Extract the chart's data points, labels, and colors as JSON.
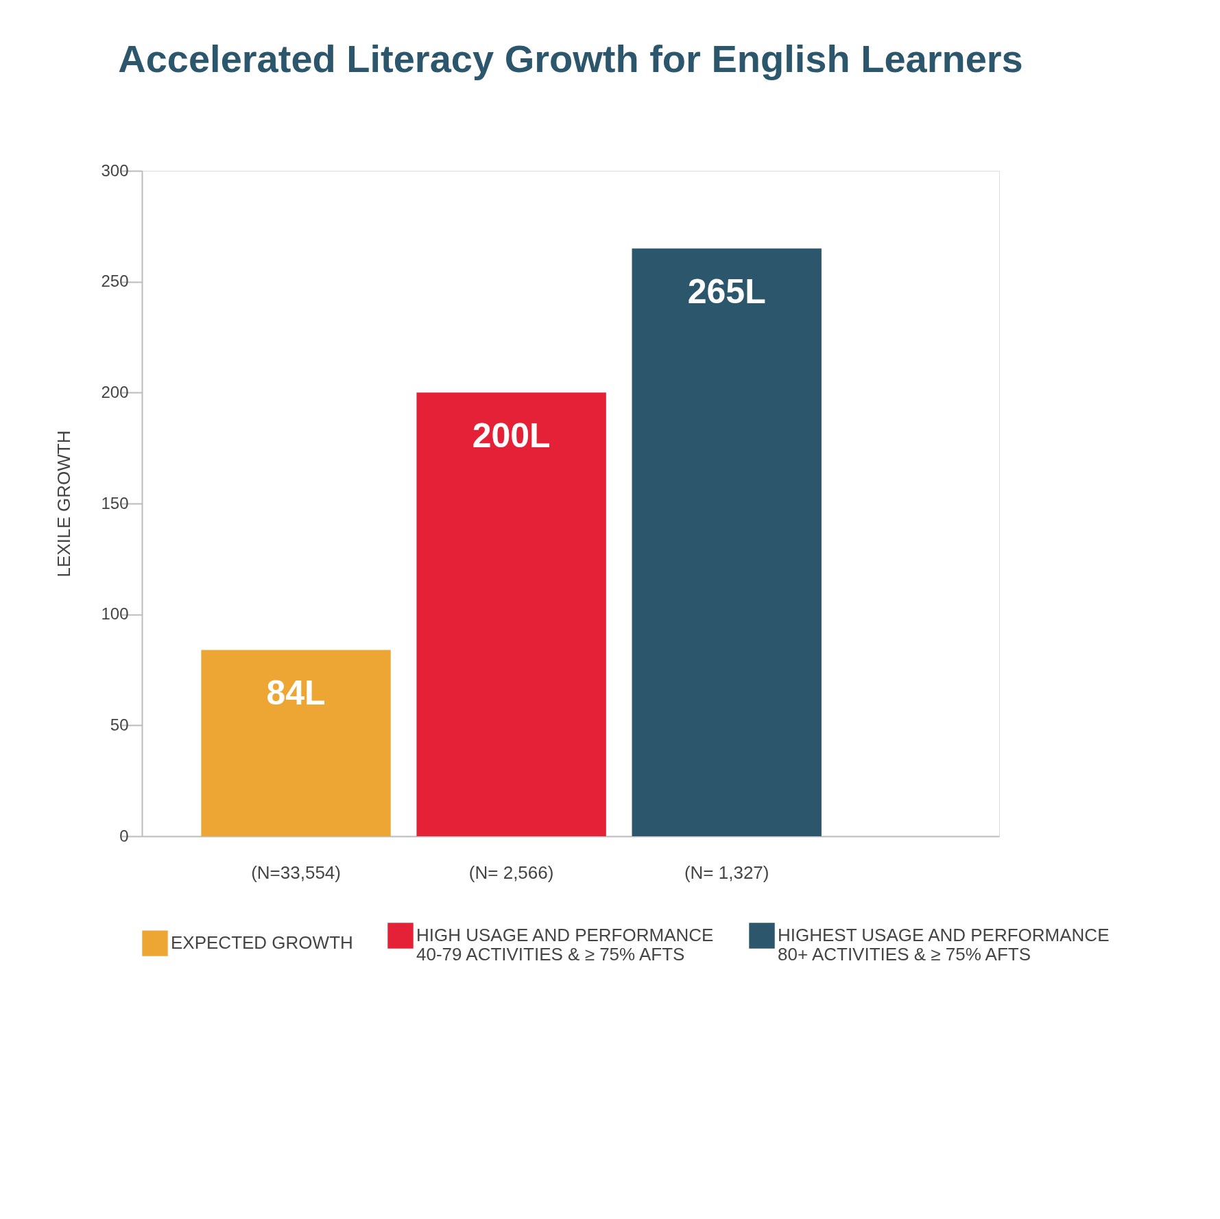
{
  "chart_data": {
    "type": "bar",
    "title": "Accelerated Literacy Growth for English Learners",
    "ylabel": "LEXILE GROWTH",
    "categories": [
      "(N=33,554)",
      "(N= 2,566)",
      "(N= 1,327)"
    ],
    "series": [
      {
        "name": "EXPECTED GROWTH",
        "color": "#eda634",
        "values": [
          84,
          null,
          null
        ],
        "value_labels": [
          "84L",
          null,
          null
        ]
      },
      {
        "name": "HIGH USAGE AND PERFORMANCE\n40-79 ACTIVITIES & ≥ 75% AFTS",
        "color": "#e42136",
        "values": [
          null,
          200,
          null
        ],
        "value_labels": [
          null,
          "200L",
          null
        ]
      },
      {
        "name": "HIGHEST USAGE AND PERFORMANCE\n80+ ACTIVITIES & ≥ 75% AFTS",
        "color": "#2b566b",
        "values": [
          null,
          null,
          265
        ],
        "value_labels": [
          null,
          null,
          "265L"
        ]
      }
    ],
    "ylim": [
      0,
      300
    ],
    "yticks": [
      0,
      50,
      100,
      150,
      200,
      250,
      300
    ],
    "legend": "bottom"
  }
}
